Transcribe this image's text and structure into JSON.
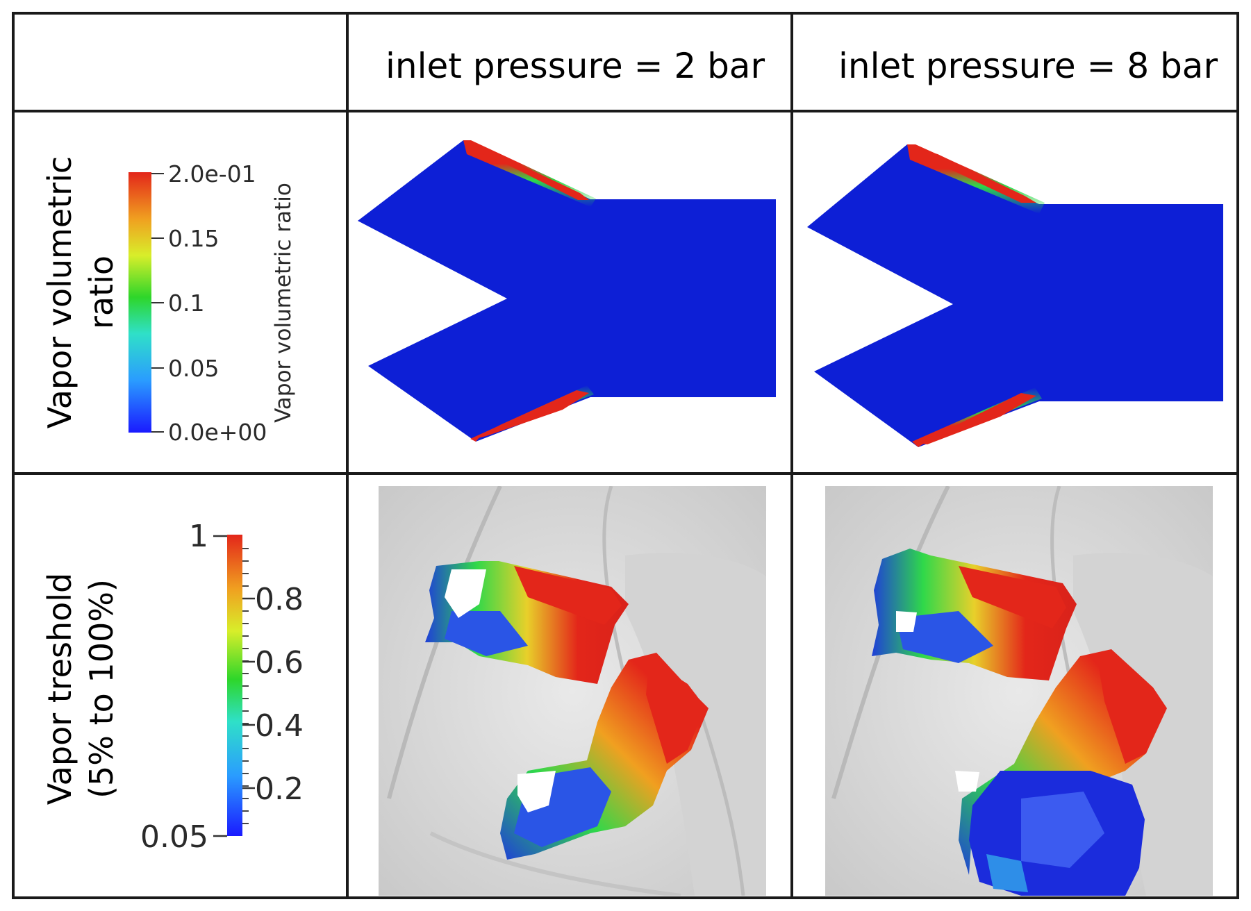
{
  "columns": [
    {
      "header": "inlet pressure = 2 bar"
    },
    {
      "header": "inlet pressure = 8 bar"
    }
  ],
  "rows": [
    {
      "label_lines": [
        "Vapor volumetric",
        "ratio"
      ],
      "colorbar": {
        "title": "Vapor volumetric ratio",
        "ticks": [
          "2.0e-01",
          "0.15",
          "0.1",
          "0.05",
          "0.0e+00"
        ]
      }
    },
    {
      "label_lines": [
        "Vapor treshold",
        "(5% to 100%)"
      ],
      "colorbar": {
        "ticks": [
          "1",
          "0.8",
          "0.6",
          "0.4",
          "0.2",
          "0.05"
        ]
      }
    }
  ],
  "colors": {
    "fluid": "#0d1fd6",
    "low": "#1a2bff",
    "mid": "#2fd84a",
    "high": "#e3261a",
    "grid": "#1a1a1a"
  }
}
